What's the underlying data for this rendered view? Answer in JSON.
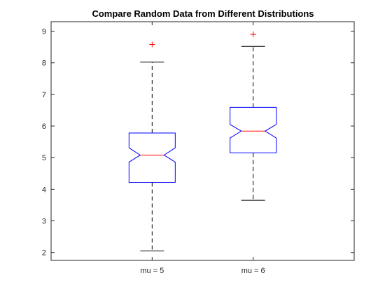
{
  "chart_data": {
    "type": "box",
    "title": "Compare Random Data from Different Distributions",
    "xlabel": "",
    "ylabel": "",
    "ylim": [
      1.75,
      9.3
    ],
    "yticks": [
      2,
      3,
      4,
      5,
      6,
      7,
      8,
      9
    ],
    "categories": [
      "mu = 5",
      "mu = 6"
    ],
    "notched": true,
    "grid": false,
    "boxes": [
      {
        "category": "mu = 5",
        "whisker_low": 2.05,
        "q1": 4.22,
        "median": 5.08,
        "q3": 5.78,
        "whisker_high": 8.02,
        "notch_low": 4.86,
        "notch_high": 5.31,
        "outliers": [
          8.58
        ]
      },
      {
        "category": "mu = 6",
        "whisker_low": 3.65,
        "q1": 5.15,
        "median": 5.84,
        "q3": 6.59,
        "whisker_high": 8.52,
        "notch_low": 5.62,
        "notch_high": 6.05,
        "outliers": [
          8.9
        ]
      }
    ],
    "colors": {
      "box": "#0000ff",
      "median": "#ff0000",
      "whisker": "#000000",
      "outlier": "#ff0000",
      "axis": "#262626"
    }
  }
}
